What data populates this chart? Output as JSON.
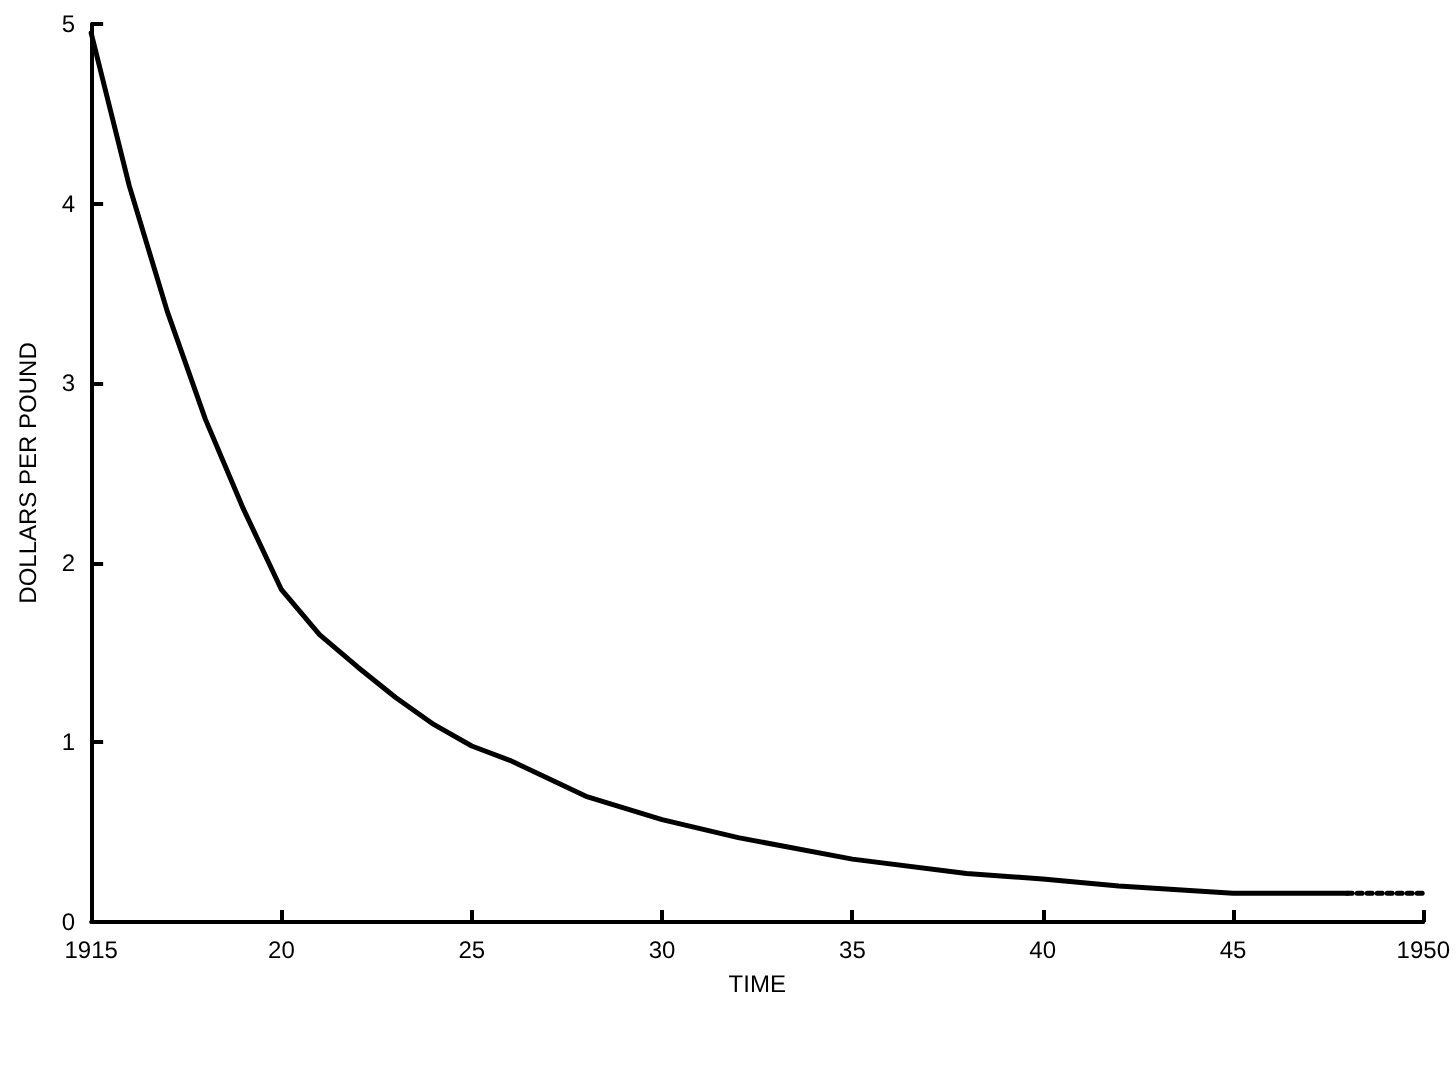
{
  "chart_data": {
    "type": "line",
    "xlabel": "TIME",
    "ylabel": "DOLLARS PER POUND",
    "xlim": [
      1915,
      1950
    ],
    "ylim": [
      0,
      5
    ],
    "xticks": [
      {
        "value": 1915,
        "label": "1915"
      },
      {
        "value": 1920,
        "label": "20"
      },
      {
        "value": 1925,
        "label": "25"
      },
      {
        "value": 1930,
        "label": "30"
      },
      {
        "value": 1935,
        "label": "35"
      },
      {
        "value": 1940,
        "label": "40"
      },
      {
        "value": 1945,
        "label": "45"
      },
      {
        "value": 1950,
        "label": "1950"
      }
    ],
    "yticks": [
      0,
      1,
      2,
      3,
      4,
      5
    ],
    "grid": false,
    "marker": "none",
    "series": [
      {
        "color": "#000000",
        "line_style": "solid",
        "x": [
          1915,
          1916,
          1917,
          1918,
          1919,
          1920,
          1921,
          1922,
          1923,
          1924,
          1925,
          1926,
          1927,
          1928,
          1930,
          1932,
          1935,
          1938,
          1940,
          1942,
          1945,
          1948
        ],
        "values": [
          4.95,
          4.1,
          3.4,
          2.8,
          2.3,
          1.85,
          1.6,
          1.42,
          1.25,
          1.1,
          0.98,
          0.9,
          0.8,
          0.7,
          0.57,
          0.47,
          0.35,
          0.27,
          0.24,
          0.2,
          0.16,
          0.16
        ]
      },
      {
        "color": "#000000",
        "line_style": "dotted",
        "x": [
          1948,
          1950
        ],
        "values": [
          0.16,
          0.16
        ]
      }
    ]
  }
}
